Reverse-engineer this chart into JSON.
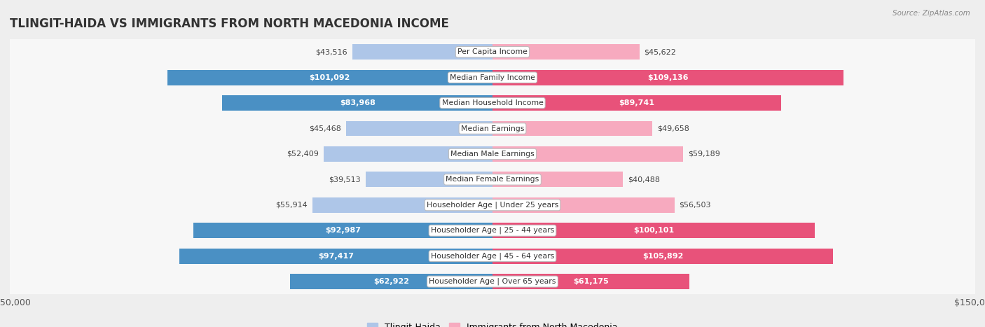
{
  "title": "TLINGIT-HAIDA VS IMMIGRANTS FROM NORTH MACEDONIA INCOME",
  "source": "Source: ZipAtlas.com",
  "categories": [
    "Per Capita Income",
    "Median Family Income",
    "Median Household Income",
    "Median Earnings",
    "Median Male Earnings",
    "Median Female Earnings",
    "Householder Age | Under 25 years",
    "Householder Age | 25 - 44 years",
    "Householder Age | 45 - 64 years",
    "Householder Age | Over 65 years"
  ],
  "tlingit_values": [
    43516,
    101092,
    83968,
    45468,
    52409,
    39513,
    55914,
    92987,
    97417,
    62922
  ],
  "macedonia_values": [
    45622,
    109136,
    89741,
    49658,
    59189,
    40488,
    56503,
    100101,
    105892,
    61175
  ],
  "max_val": 150000,
  "tlingit_light": "#AEC6E8",
  "tlingit_dark": "#4A90C4",
  "macedonia_light": "#F7AABF",
  "macedonia_dark": "#E8527A",
  "threshold": 60000,
  "bar_height": 0.6,
  "bg_color": "#EEEEEE",
  "row_odd": "#F7F7F7",
  "row_even": "#FFFFFF",
  "outer_label_color": "#444444",
  "title_color": "#333333",
  "source_color": "#888888",
  "cat_label_color": "#333333",
  "legend_label1": "Tlingit-Haida",
  "legend_label2": "Immigrants from North Macedonia"
}
